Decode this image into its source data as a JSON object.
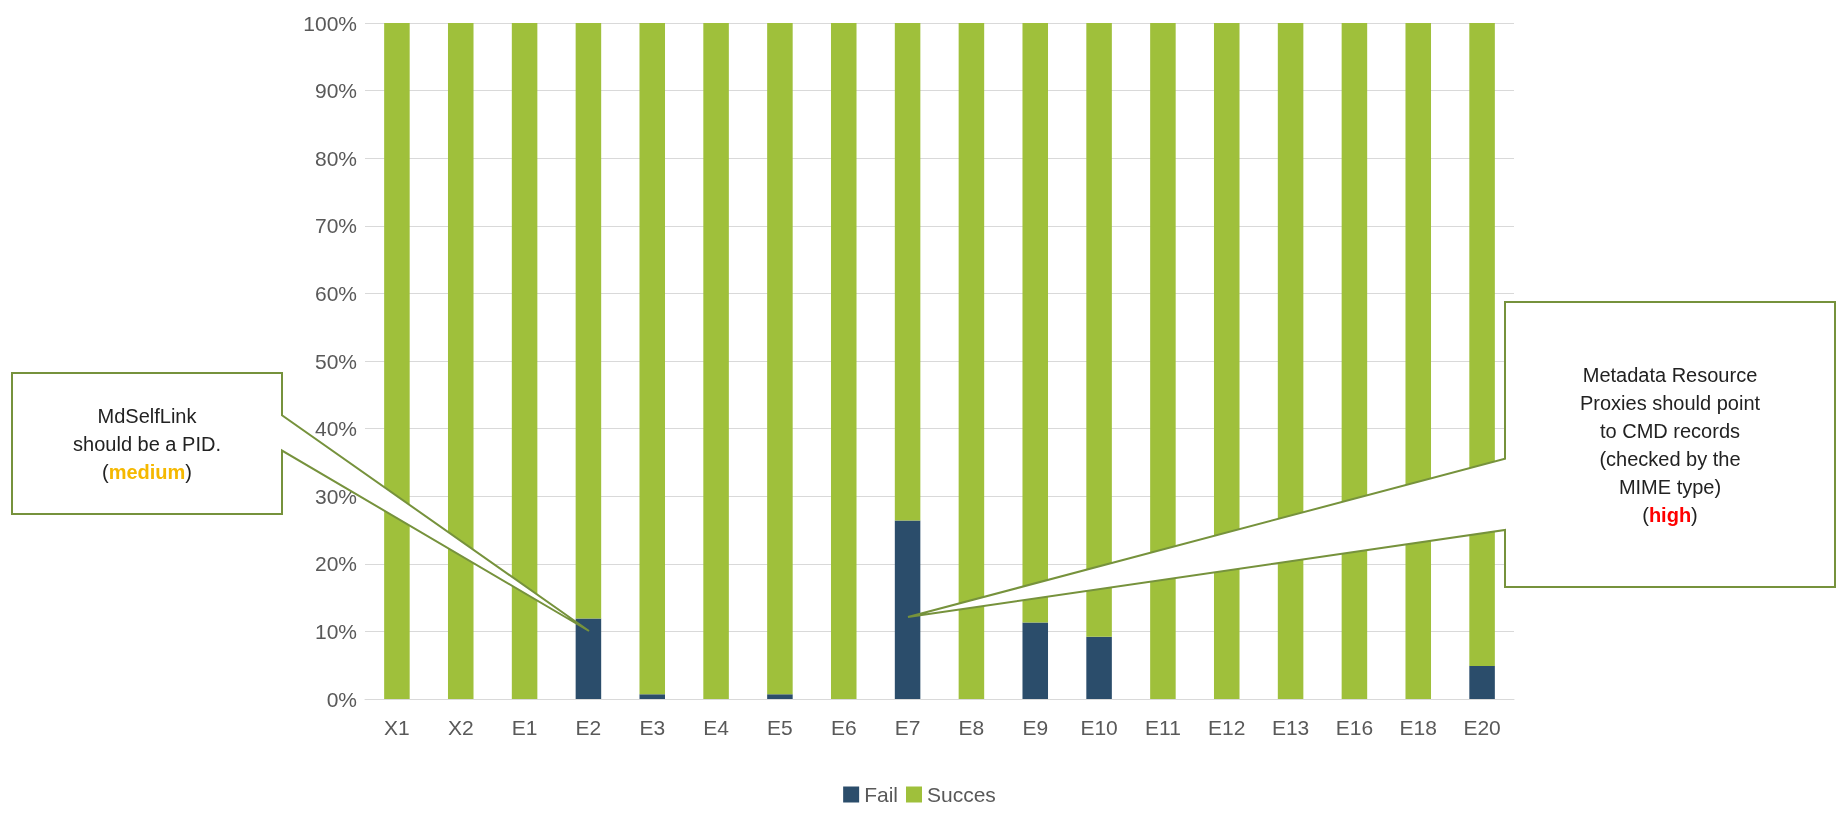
{
  "chart_data": {
    "type": "bar",
    "stacked": true,
    "categories": [
      "X1",
      "X2",
      "E1",
      "E2",
      "E3",
      "E4",
      "E5",
      "E6",
      "E7",
      "E8",
      "E9",
      "E10",
      "E11",
      "E12",
      "E13",
      "E16",
      "E18",
      "E20"
    ],
    "series": [
      {
        "name": "Fail",
        "color": "#2b4d6b",
        "values": [
          0,
          0,
          0,
          11.9,
          0.7,
          0,
          0.7,
          0,
          26.4,
          0,
          11.3,
          9.2,
          0,
          0,
          0,
          0,
          0,
          4.9
        ]
      },
      {
        "name": "Succes",
        "color": "#9fc03b",
        "values": [
          100,
          100,
          100,
          88.1,
          99.3,
          100,
          99.3,
          100,
          73.6,
          100,
          88.7,
          90.8,
          100,
          100,
          100,
          100,
          100,
          95.1
        ]
      }
    ],
    "ylim": [
      0,
      100
    ],
    "yticks": [
      {
        "value": 0,
        "label": "0%"
      },
      {
        "value": 10,
        "label": "10%"
      },
      {
        "value": 20,
        "label": "20%"
      },
      {
        "value": 30,
        "label": "30%"
      },
      {
        "value": 40,
        "label": "40%"
      },
      {
        "value": 50,
        "label": "50%"
      },
      {
        "value": 60,
        "label": "60%"
      },
      {
        "value": 70,
        "label": "70%"
      },
      {
        "value": 80,
        "label": "80%"
      },
      {
        "value": 90,
        "label": "90%"
      },
      {
        "value": 100,
        "label": "100%"
      }
    ],
    "grid": "y",
    "legend": "bottom",
    "annotations": [
      "MdSelfLink\nshould be a PID.\n(medium)",
      "Metadata Resource\nProxies should point\nto CMD records\n(checked by the\nMIME type)\n(high)"
    ]
  }
}
